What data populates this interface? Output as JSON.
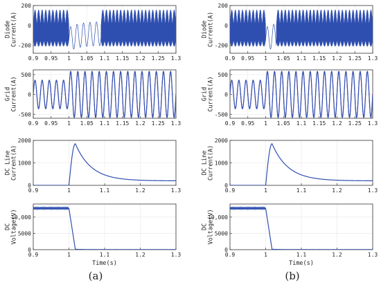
{
  "panel_labels": [
    "(a)",
    "(b)"
  ],
  "colors": {
    "primary": "#2f4fb0",
    "secondary": "#9b2a8a",
    "axis": "#333333",
    "grid": "#e6e6e6"
  },
  "chart_data": [
    {
      "id": "a1",
      "type": "line",
      "col": 0,
      "row": 0,
      "ylabel": [
        "Diode",
        "Current(A)"
      ],
      "xlabel": "",
      "xlim": [
        0.9,
        1.3
      ],
      "ylim": [
        -280,
        200
      ],
      "grid": true,
      "xticks": [
        0.9,
        0.95,
        1,
        1.05,
        1.1,
        1.15,
        1.2,
        1.25,
        1.3
      ],
      "xtick_labels": [
        "0.9",
        "0.95",
        "1",
        "1.05",
        "1.1",
        "1.15",
        "1.2",
        "1.25",
        "1.3"
      ],
      "yticks": [
        -200,
        0,
        200
      ],
      "ytick_labels": [
        "-200",
        "0",
        "200"
      ],
      "signal": "diode",
      "fault_at": 1.0,
      "recovery_at": 1.09
    },
    {
      "id": "a2",
      "type": "line",
      "col": 0,
      "row": 1,
      "ylabel": [
        "Grid",
        "Current(A)"
      ],
      "xlabel": "",
      "xlim": [
        0.9,
        1.3
      ],
      "ylim": [
        -600,
        620
      ],
      "grid": true,
      "xticks": [
        0.9,
        0.95,
        1,
        1.05,
        1.1,
        1.15,
        1.2,
        1.25,
        1.3
      ],
      "xtick_labels": [
        "0.9",
        "0.95",
        "1",
        "1.05",
        "1.1",
        "1.15",
        "1.2",
        "1.25",
        "1.3"
      ],
      "yticks": [
        -500,
        0,
        500
      ],
      "ytick_labels": [
        "-500",
        "0",
        "500"
      ],
      "signal": "grid",
      "freq_hz": 50,
      "pre_amp": 360,
      "post_amp": 580,
      "fault_at": 1.0
    },
    {
      "id": "a3",
      "type": "line",
      "col": 0,
      "row": 2,
      "ylabel": [
        "DC Line",
        "Current(A)"
      ],
      "xlabel": "",
      "xlim": [
        0.9,
        1.3
      ],
      "ylim": [
        0,
        2000
      ],
      "grid": true,
      "xticks": [
        0.9,
        1.0,
        1.1,
        1.2,
        1.3
      ],
      "xtick_labels": [
        "0.9",
        "1",
        "1.1",
        "1.2",
        "1.3"
      ],
      "yticks": [
        0,
        1000,
        2000
      ],
      "ytick_labels": [
        "0",
        "1000",
        "2000"
      ],
      "signal": "dcline",
      "fault_at": 1.0,
      "peak_time": 1.018,
      "peak": 1850,
      "final": 200,
      "tau": 0.045
    },
    {
      "id": "a4",
      "type": "line",
      "col": 0,
      "row": 3,
      "ylabel": [
        "DC",
        "Voltage(V)"
      ],
      "xlabel": "Time(s)",
      "xlim": [
        0.9,
        1.3
      ],
      "ylim": [
        0,
        14000
      ],
      "grid": true,
      "xticks": [
        0.9,
        1.0,
        1.1,
        1.2,
        1.3
      ],
      "xtick_labels": [
        "0.9",
        "1",
        "1.1",
        "1.2",
        "1.3"
      ],
      "yticks": [
        0,
        5000,
        10000
      ],
      "ytick_labels": [
        "0",
        "5000",
        "10,000"
      ],
      "signal": "dcv",
      "level": 12700,
      "ripple": 300,
      "fault_at": 1.0,
      "collapse_end": 1.018
    },
    {
      "id": "b1",
      "type": "line",
      "col": 1,
      "row": 0,
      "ylabel": [
        "Diode",
        "Current(A)"
      ],
      "xlabel": "",
      "xlim": [
        0.9,
        1.3
      ],
      "ylim": [
        -280,
        200
      ],
      "grid": true,
      "xticks": [
        0.9,
        0.95,
        1,
        1.05,
        1.1,
        1.15,
        1.2,
        1.25,
        1.3
      ],
      "xtick_labels": [
        "0.9",
        "0.95",
        "1",
        "1.05",
        "1.1",
        "1.15",
        "1.2",
        "1.25",
        "1.3"
      ],
      "yticks": [
        -200,
        0,
        200
      ],
      "ytick_labels": [
        "-200",
        "0",
        "200"
      ],
      "signal": "diode",
      "fault_at": 1.0,
      "recovery_at": 1.03
    },
    {
      "id": "b2",
      "type": "line",
      "col": 1,
      "row": 1,
      "ylabel": [
        "Grid",
        "Current(A)"
      ],
      "xlabel": "",
      "xlim": [
        0.9,
        1.3
      ],
      "ylim": [
        -600,
        620
      ],
      "grid": true,
      "xticks": [
        0.9,
        0.95,
        1,
        1.05,
        1.1,
        1.15,
        1.2,
        1.25,
        1.3
      ],
      "xtick_labels": [
        "0.9",
        "0.95",
        "1",
        "1.05",
        "1.1",
        "1.15",
        "1.2",
        "1.25",
        "1.3"
      ],
      "yticks": [
        -500,
        0,
        500
      ],
      "ytick_labels": [
        "-500",
        "0",
        "500"
      ],
      "signal": "grid",
      "freq_hz": 50,
      "pre_amp": 360,
      "post_amp": 580,
      "fault_at": 1.0
    },
    {
      "id": "b3",
      "type": "line",
      "col": 1,
      "row": 2,
      "ylabel": [
        "DC Line",
        "Current(A)"
      ],
      "xlabel": "",
      "xlim": [
        0.9,
        1.3
      ],
      "ylim": [
        0,
        2000
      ],
      "grid": true,
      "xticks": [
        0.9,
        1.0,
        1.1,
        1.2,
        1.3
      ],
      "xtick_labels": [
        "0.9",
        "1",
        "1.1",
        "1.2",
        "1.3"
      ],
      "yticks": [
        0,
        1000,
        2000
      ],
      "ytick_labels": [
        "0",
        "1000",
        "2000"
      ],
      "signal": "dcline",
      "fault_at": 1.0,
      "peak_time": 1.018,
      "peak": 1850,
      "final": 200,
      "tau": 0.045
    },
    {
      "id": "b4",
      "type": "line",
      "col": 1,
      "row": 3,
      "ylabel": [
        "DC",
        "Voltage(V)"
      ],
      "xlabel": "Time(s)",
      "xlim": [
        0.9,
        1.3
      ],
      "ylim": [
        0,
        14000
      ],
      "grid": true,
      "xticks": [
        0.9,
        1.0,
        1.1,
        1.2,
        1.3
      ],
      "xtick_labels": [
        "0.9",
        "1",
        "1.1",
        "1.2",
        "1.3"
      ],
      "yticks": [
        0,
        5000,
        10000
      ],
      "ytick_labels": [
        "0",
        "5000",
        "10,000"
      ],
      "signal": "dcv",
      "level": 12700,
      "ripple": 300,
      "fault_at": 1.0,
      "collapse_end": 1.018
    }
  ]
}
